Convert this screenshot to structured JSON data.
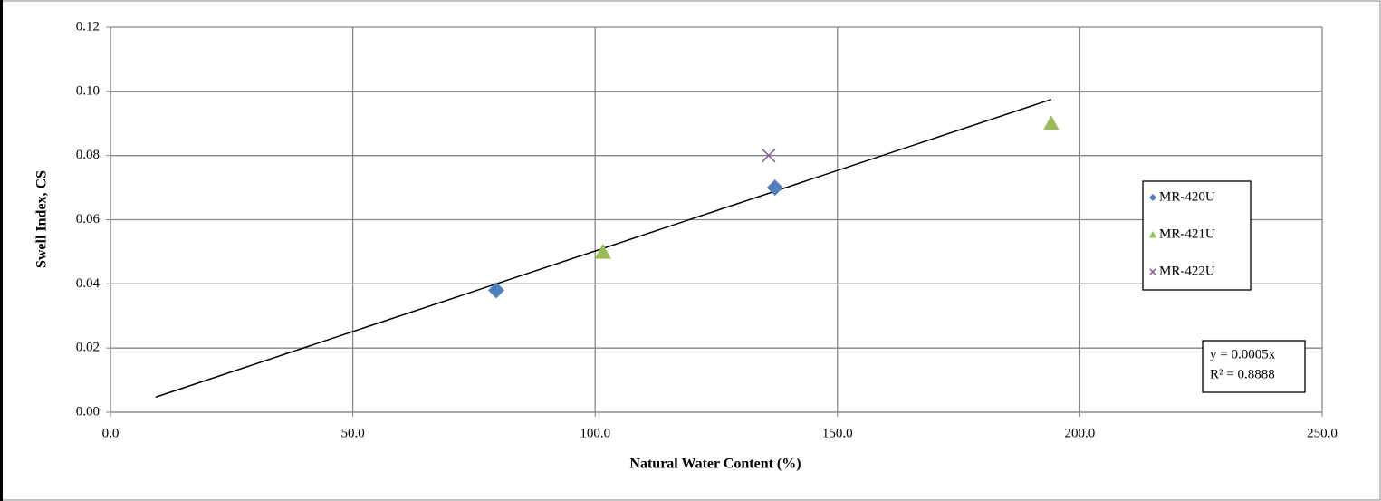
{
  "chart_data": {
    "type": "scatter",
    "xlabel": "Natural Water Content (%)",
    "ylabel": "Swell Index, CS",
    "xlim": [
      0,
      250
    ],
    "ylim": [
      0,
      0.12
    ],
    "xticks": [
      {
        "value": 0,
        "label": "0.0"
      },
      {
        "value": 50,
        "label": "50.0"
      },
      {
        "value": 100,
        "label": "100.0"
      },
      {
        "value": 150,
        "label": "150.0"
      },
      {
        "value": 200,
        "label": "200.0"
      },
      {
        "value": 250,
        "label": "250.0"
      }
    ],
    "yticks": [
      {
        "value": 0,
        "label": "0.00"
      },
      {
        "value": 0.02,
        "label": "0.02"
      },
      {
        "value": 0.04,
        "label": "0.04"
      },
      {
        "value": 0.06,
        "label": "0.06"
      },
      {
        "value": 0.08,
        "label": "0.08"
      },
      {
        "value": 0.1,
        "label": "0.10"
      },
      {
        "value": 0.12,
        "label": "0.12"
      }
    ],
    "grid": true,
    "legend": "right",
    "series": [
      {
        "name": "MR-420U",
        "color": "#4f81bd",
        "marker": "diamond",
        "x": [
          79.6,
          137.1
        ],
        "values": [
          0.038,
          0.07
        ]
      },
      {
        "name": "MR-421U",
        "color": "#9bbb59",
        "marker": "triangle",
        "x": [
          101.6,
          194.1
        ],
        "values": [
          0.05,
          0.09
        ]
      },
      {
        "name": "MR-422U",
        "color": "#8064a2",
        "marker": "x",
        "x": [
          135.8
        ],
        "values": [
          0.08
        ]
      }
    ],
    "trendline": {
      "color": "#000000",
      "x": [
        9.3,
        194.1
      ],
      "values": [
        0.0047,
        0.0975
      ]
    },
    "annotations": [
      "y = 0.0005x",
      "R² = 0.8888"
    ]
  }
}
